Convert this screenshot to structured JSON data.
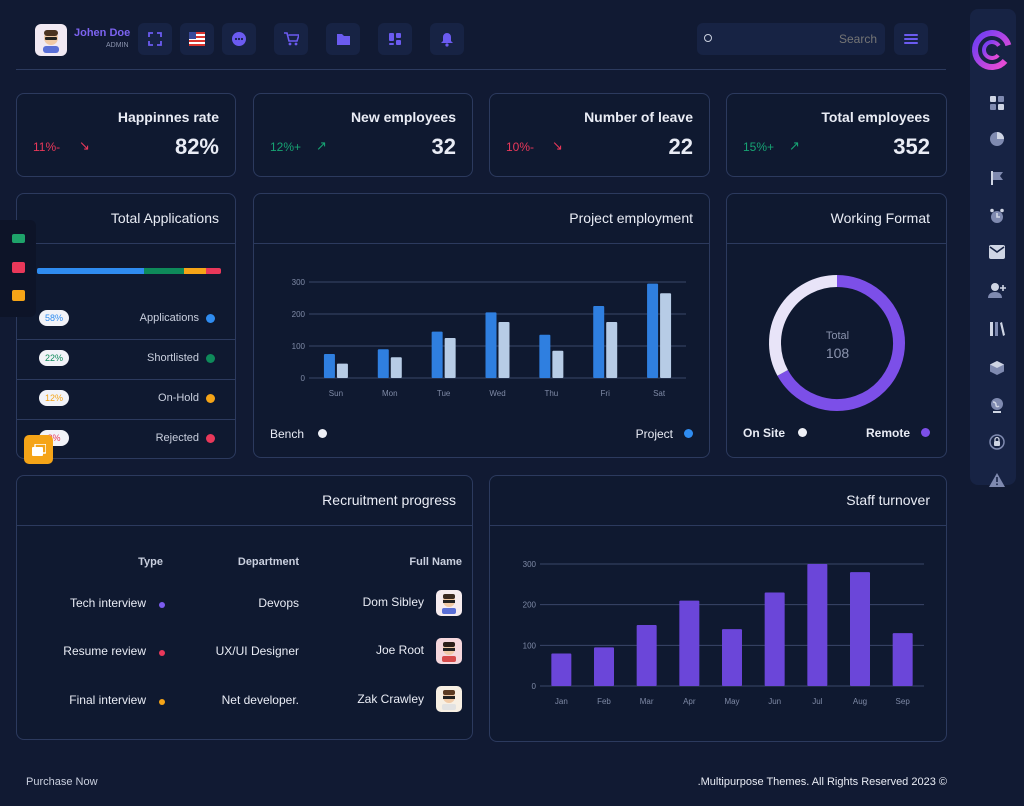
{
  "user": {
    "name": "Johen Doe",
    "role": "ADMIN"
  },
  "toolbar": {
    "search_placeholder": "Search"
  },
  "stats": [
    {
      "title": "Happinnes rate",
      "value": "82%",
      "change": "11%-",
      "trend": "down"
    },
    {
      "title": "New employees",
      "value": "32",
      "change": "12%+",
      "trend": "up"
    },
    {
      "title": "Number of leave",
      "value": "22",
      "change": "10%-",
      "trend": "down"
    },
    {
      "title": "Total employees",
      "value": "352",
      "change": "15%+",
      "trend": "up"
    }
  ],
  "applications": {
    "title": "Total Applications",
    "items": [
      {
        "pct": "58%",
        "label": "Applications",
        "color": "#2f8cf0"
      },
      {
        "pct": "22%",
        "label": "Shortlisted",
        "color": "#0e8a5a"
      },
      {
        "pct": "12%",
        "label": "On-Hold",
        "color": "#f5a417"
      },
      {
        "pct": "8%",
        "label": "Rejected",
        "color": "#e9385a"
      }
    ]
  },
  "project": {
    "title": "Project employment",
    "legend_bench": "Bench",
    "legend_project": "Project"
  },
  "format": {
    "title": "Working Format",
    "total_label": "Total",
    "total_value": "108",
    "legend_onsite": "On Site",
    "legend_remote": "Remote"
  },
  "recruitment": {
    "title": "Recruitment progress",
    "headers": {
      "type": "Type",
      "department": "Department",
      "name": "Full Name"
    },
    "rows": [
      {
        "type": "Tech interview",
        "dot": "#7c5cf0",
        "department": "Devops",
        "name": "Dom Sibley"
      },
      {
        "type": "Resume review",
        "dot": "#e9385a",
        "department": "UX/UI Designer",
        "name": "Joe Root"
      },
      {
        "type": "Final interview",
        "dot": "#f5a417",
        "department": "Net developer.",
        "name": "Zak Crawley"
      }
    ]
  },
  "turnover": {
    "title": "Staff turnover"
  },
  "footer": {
    "left": "Purchase Now",
    "right": ".Multipurpose Themes. All Rights Reserved 2023 ©"
  },
  "chart_data": [
    {
      "type": "bar",
      "title": "Project employment",
      "categories": [
        "Sun",
        "Mon",
        "Tue",
        "Wed",
        "Thu",
        "Fri",
        "Sat"
      ],
      "series": [
        {
          "name": "Project",
          "color": "#2f7fe0",
          "values": [
            75,
            90,
            145,
            205,
            135,
            225,
            295
          ]
        },
        {
          "name": "Bench",
          "color": "#b7cce6",
          "values": [
            45,
            65,
            125,
            175,
            85,
            175,
            265
          ]
        }
      ],
      "ylim": [
        0,
        300
      ],
      "yticks": [
        0,
        100,
        200,
        300
      ],
      "grid": true,
      "legend": "bottom"
    },
    {
      "type": "pie",
      "title": "Working Format",
      "series": [
        {
          "name": "Remote",
          "color": "#7c4fe8",
          "values": [
            67
          ]
        },
        {
          "name": "On Site",
          "color": "#e8e4f8",
          "values": [
            33
          ]
        }
      ],
      "total": 108
    },
    {
      "type": "bar",
      "title": "Staff turnover",
      "categories": [
        "Jan",
        "Feb",
        "Mar",
        "Apr",
        "May",
        "Jun",
        "Jul",
        "Aug",
        "Sep"
      ],
      "series": [
        {
          "name": "",
          "color": "#6b46d9",
          "values": [
            80,
            95,
            150,
            210,
            140,
            230,
            300,
            280,
            130
          ]
        }
      ],
      "ylim": [
        0,
        300
      ],
      "yticks": [
        0,
        100,
        200,
        300
      ],
      "grid": true
    }
  ]
}
